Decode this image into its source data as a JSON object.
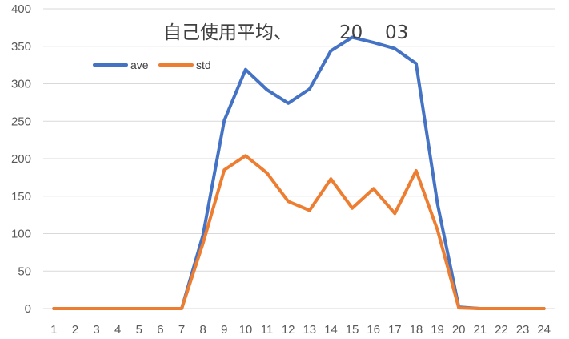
{
  "chart_data": {
    "type": "line",
    "title_parts": [
      "自己使用平均、",
      "20",
      "03"
    ],
    "xlabel": "",
    "ylabel": "",
    "ylim": [
      0,
      400
    ],
    "y_ticks": [
      0,
      50,
      100,
      150,
      200,
      250,
      300,
      350,
      400
    ],
    "categories": [
      "1",
      "2",
      "3",
      "4",
      "5",
      "6",
      "7",
      "8",
      "9",
      "10",
      "11",
      "12",
      "13",
      "14",
      "15",
      "16",
      "17",
      "18",
      "19",
      "20",
      "21",
      "22",
      "23",
      "24"
    ],
    "grid": true,
    "legend_position": "top-left",
    "series": [
      {
        "name": "ave",
        "color": "#4472c4",
        "values": [
          0,
          0,
          0,
          0,
          0,
          0,
          0,
          98,
          251,
          319,
          292,
          274,
          293,
          344,
          362,
          355,
          347,
          327,
          140,
          2,
          0,
          0,
          0,
          0
        ]
      },
      {
        "name": "std",
        "color": "#ed7d31",
        "values": [
          0,
          0,
          0,
          0,
          0,
          0,
          0,
          87,
          185,
          204,
          181,
          143,
          131,
          173,
          134,
          160,
          127,
          184,
          105,
          1,
          0,
          0,
          0,
          0
        ]
      }
    ]
  }
}
